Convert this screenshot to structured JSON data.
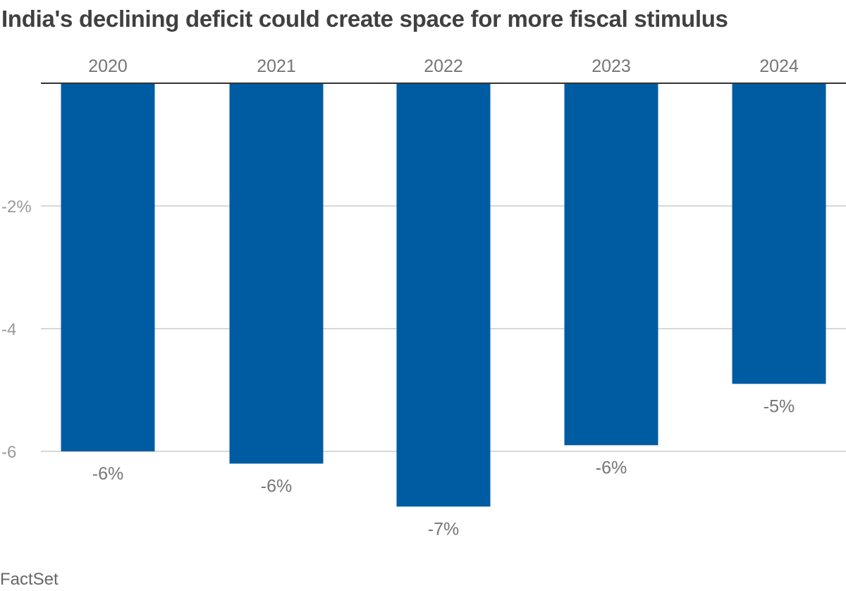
{
  "chart_data": {
    "type": "bar",
    "title": "India's declining deficit could create space for more fiscal stimulus",
    "source": "FactSet",
    "categories": [
      "2020",
      "2021",
      "2022",
      "2023",
      "2024"
    ],
    "values": [
      -6.0,
      -6.2,
      -6.9,
      -5.9,
      -4.9
    ],
    "data_labels": [
      "-6%",
      "-6%",
      "-7%",
      "-6%",
      "-5%"
    ],
    "y_ticks": [
      {
        "value": -2,
        "label": "-2%"
      },
      {
        "value": -4,
        "label": "-4"
      },
      {
        "value": -6,
        "label": "-6"
      }
    ],
    "ylim": [
      -7.2,
      0
    ],
    "xlabel": "",
    "ylabel": "",
    "bar_color": "#005ca2",
    "grid": true,
    "category_axis_position": "top"
  }
}
